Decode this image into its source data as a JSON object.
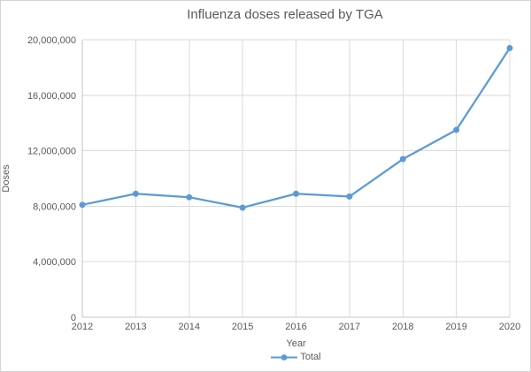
{
  "chart_data": {
    "type": "line",
    "title": "Influenza doses released by TGA",
    "xlabel": "Year",
    "ylabel": "Doses",
    "categories": [
      "2012",
      "2013",
      "2014",
      "2015",
      "2016",
      "2017",
      "2018",
      "2019",
      "2020"
    ],
    "series": [
      {
        "name": "Total",
        "values": [
          8100000,
          8900000,
          8650000,
          7900000,
          8900000,
          8700000,
          11400000,
          13500000,
          19400000
        ]
      }
    ],
    "ylim": [
      0,
      20000000
    ],
    "ytick_interval": 4000000,
    "ytick_labels": [
      "0",
      "4,000,000",
      "8,000,000",
      "12,000,000",
      "16,000,000",
      "20,000,000"
    ],
    "grid": "both",
    "legend_position": "bottom",
    "marker": "circle",
    "colors": {
      "series": "#5B9BD5",
      "gridline": "#DADADA",
      "axis": "#C6C6C6",
      "text": "#595959",
      "background": "#FFFFFF",
      "border": "#D4D4D4"
    }
  }
}
